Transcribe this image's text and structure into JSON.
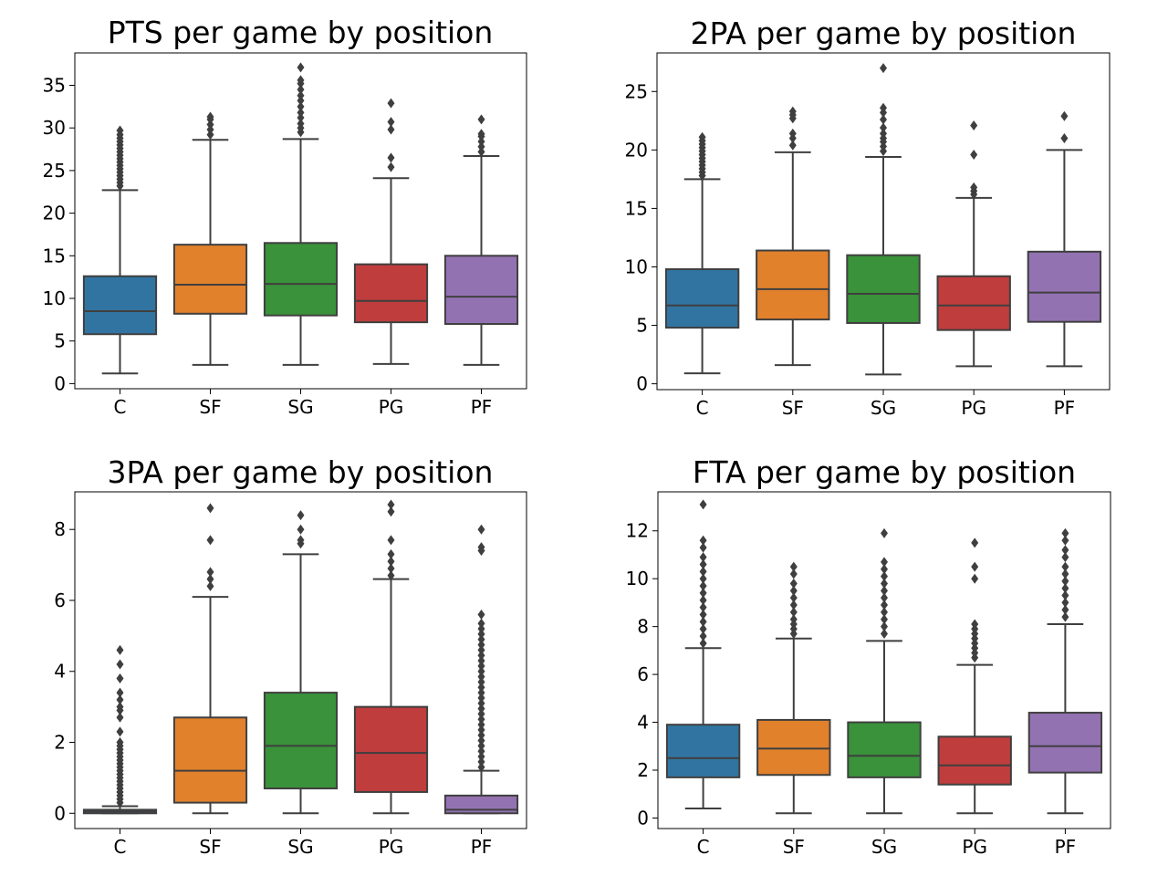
{
  "chart_data": [
    {
      "type": "box",
      "title": "PTS per game by position",
      "categories": [
        "C",
        "SF",
        "SG",
        "PG",
        "PF"
      ],
      "colors": [
        "#3274a1",
        "#e1812c",
        "#3a923a",
        "#c03d3e",
        "#9372b2"
      ],
      "ylim": [
        -0.6,
        38.8
      ],
      "yticks": [
        0,
        5,
        10,
        15,
        20,
        25,
        30,
        35
      ],
      "boxes": [
        {
          "whislo": 1.2,
          "q1": 5.8,
          "med": 8.5,
          "q3": 12.6,
          "whishi": 22.7,
          "fliers": [
            23.2,
            23.6,
            24.0,
            24.4,
            24.8,
            25.2,
            25.6,
            26.0,
            26.4,
            26.8,
            27.2,
            27.6,
            28.0,
            28.4,
            28.8,
            29.2,
            29.7
          ]
        },
        {
          "whislo": 2.2,
          "q1": 8.2,
          "med": 11.6,
          "q3": 16.3,
          "whishi": 28.6,
          "fliers": [
            29.2,
            29.8,
            30.4,
            31.0,
            31.3
          ]
        },
        {
          "whislo": 2.2,
          "q1": 8.0,
          "med": 11.7,
          "q3": 16.5,
          "whishi": 28.7,
          "fliers": [
            29.5,
            30.0,
            30.5,
            31.2,
            31.8,
            32.5,
            33.2,
            33.8,
            34.5,
            35.2,
            35.6,
            37.1
          ]
        },
        {
          "whislo": 2.3,
          "q1": 7.2,
          "med": 9.7,
          "q3": 14.0,
          "whishi": 24.1,
          "fliers": [
            25.4,
            26.5,
            29.8,
            30.7,
            32.9
          ]
        },
        {
          "whislo": 2.2,
          "q1": 7.0,
          "med": 10.2,
          "q3": 15.0,
          "whishi": 26.7,
          "fliers": [
            27.2,
            27.8,
            28.4,
            29.0,
            29.3,
            31.0
          ]
        }
      ]
    },
    {
      "type": "box",
      "title": "2PA per game by position",
      "categories": [
        "C",
        "SF",
        "SG",
        "PG",
        "PF"
      ],
      "colors": [
        "#3274a1",
        "#e1812c",
        "#3a923a",
        "#c03d3e",
        "#9372b2"
      ],
      "ylim": [
        -0.5,
        28.3
      ],
      "yticks": [
        0,
        5,
        10,
        15,
        20,
        25
      ],
      "boxes": [
        {
          "whislo": 0.9,
          "q1": 4.8,
          "med": 6.7,
          "q3": 9.8,
          "whishi": 17.5,
          "fliers": [
            17.8,
            18.1,
            18.4,
            18.7,
            19.0,
            19.3,
            19.6,
            19.9,
            20.2,
            20.5,
            20.8,
            21.1
          ]
        },
        {
          "whislo": 1.6,
          "q1": 5.5,
          "med": 8.1,
          "q3": 11.4,
          "whishi": 19.8,
          "fliers": [
            20.4,
            21.0,
            21.4,
            22.7,
            23.0,
            23.3
          ]
        },
        {
          "whislo": 0.8,
          "q1": 5.2,
          "med": 7.7,
          "q3": 11.0,
          "whishi": 19.4,
          "fliers": [
            19.9,
            20.3,
            20.7,
            21.0,
            21.4,
            21.9,
            22.6,
            23.2,
            23.6,
            27.0
          ]
        },
        {
          "whislo": 1.5,
          "q1": 4.6,
          "med": 6.7,
          "q3": 9.2,
          "whishi": 15.9,
          "fliers": [
            16.2,
            16.5,
            16.8,
            19.6,
            22.1
          ]
        },
        {
          "whislo": 1.5,
          "q1": 5.3,
          "med": 7.8,
          "q3": 11.3,
          "whishi": 20.0,
          "fliers": [
            21.0,
            22.9
          ]
        }
      ]
    },
    {
      "type": "box",
      "title": "3PA per game by position",
      "categories": [
        "C",
        "SF",
        "SG",
        "PG",
        "PF"
      ],
      "colors": [
        "#3274a1",
        "#e1812c",
        "#3a923a",
        "#c03d3e",
        "#9372b2"
      ],
      "ylim": [
        -0.43,
        9.06
      ],
      "yticks": [
        0,
        2,
        4,
        6,
        8
      ],
      "boxes": [
        {
          "whislo": 0.0,
          "q1": 0.0,
          "med": 0.05,
          "q3": 0.1,
          "whishi": 0.2,
          "fliers": [
            0.3,
            0.4,
            0.5,
            0.6,
            0.7,
            0.8,
            0.9,
            1.0,
            1.1,
            1.2,
            1.3,
            1.4,
            1.5,
            1.6,
            1.7,
            1.8,
            1.9,
            2.0,
            2.3,
            2.7,
            2.9,
            3.0,
            3.2,
            3.4,
            3.8,
            4.2,
            4.6
          ]
        },
        {
          "whislo": 0.0,
          "q1": 0.3,
          "med": 1.2,
          "q3": 2.7,
          "whishi": 6.1,
          "fliers": [
            6.4,
            6.6,
            6.8,
            7.7,
            8.6
          ]
        },
        {
          "whislo": 0.0,
          "q1": 0.7,
          "med": 1.9,
          "q3": 3.4,
          "whishi": 7.3,
          "fliers": [
            7.6,
            7.7,
            8.0,
            8.4
          ]
        },
        {
          "whislo": 0.0,
          "q1": 0.6,
          "med": 1.7,
          "q3": 3.0,
          "whishi": 6.6,
          "fliers": [
            6.7,
            6.9,
            7.1,
            7.3,
            7.7,
            8.5,
            8.7
          ]
        },
        {
          "whislo": 0.0,
          "q1": 0.0,
          "med": 0.1,
          "q3": 0.5,
          "whishi": 1.2,
          "fliers": [
            1.3,
            1.45,
            1.6,
            1.75,
            1.9,
            2.05,
            2.2,
            2.35,
            2.5,
            2.65,
            2.8,
            2.95,
            3.1,
            3.25,
            3.4,
            3.55,
            3.7,
            3.85,
            4.0,
            4.15,
            4.3,
            4.45,
            4.6,
            4.75,
            4.9,
            5.05,
            5.2,
            5.35,
            5.6,
            7.4,
            7.5,
            8.0
          ]
        }
      ]
    },
    {
      "type": "box",
      "title": "FTA per game by position",
      "categories": [
        "C",
        "SF",
        "SG",
        "PG",
        "PF"
      ],
      "colors": [
        "#3274a1",
        "#e1812c",
        "#3a923a",
        "#c03d3e",
        "#9372b2"
      ],
      "ylim": [
        -0.44,
        13.63
      ],
      "yticks": [
        0,
        2,
        4,
        6,
        8,
        10,
        12
      ],
      "boxes": [
        {
          "whislo": 0.4,
          "q1": 1.7,
          "med": 2.5,
          "q3": 3.9,
          "whishi": 7.1,
          "fliers": [
            7.3,
            7.6,
            7.9,
            8.2,
            8.5,
            8.8,
            9.1,
            9.4,
            9.7,
            10.0,
            10.3,
            10.6,
            10.9,
            11.3,
            11.6,
            13.1
          ]
        },
        {
          "whislo": 0.2,
          "q1": 1.8,
          "med": 2.9,
          "q3": 4.1,
          "whishi": 7.5,
          "fliers": [
            7.7,
            7.9,
            8.1,
            8.3,
            8.6,
            8.9,
            9.2,
            9.5,
            9.8,
            10.2,
            10.5
          ]
        },
        {
          "whislo": 0.2,
          "q1": 1.7,
          "med": 2.6,
          "q3": 4.0,
          "whishi": 7.4,
          "fliers": [
            7.7,
            8.0,
            8.3,
            8.6,
            8.9,
            9.2,
            9.5,
            9.8,
            10.1,
            10.4,
            10.7,
            11.9
          ]
        },
        {
          "whislo": 0.2,
          "q1": 1.4,
          "med": 2.2,
          "q3": 3.4,
          "whishi": 6.4,
          "fliers": [
            6.7,
            6.9,
            7.1,
            7.3,
            7.5,
            7.7,
            7.9,
            8.1,
            10.0,
            10.5,
            11.5
          ]
        },
        {
          "whislo": 0.2,
          "q1": 1.9,
          "med": 3.0,
          "q3": 4.4,
          "whishi": 8.1,
          "fliers": [
            8.4,
            8.7,
            9.0,
            9.3,
            9.6,
            9.9,
            10.2,
            10.5,
            10.9,
            11.2,
            11.6,
            11.9
          ]
        }
      ]
    }
  ]
}
